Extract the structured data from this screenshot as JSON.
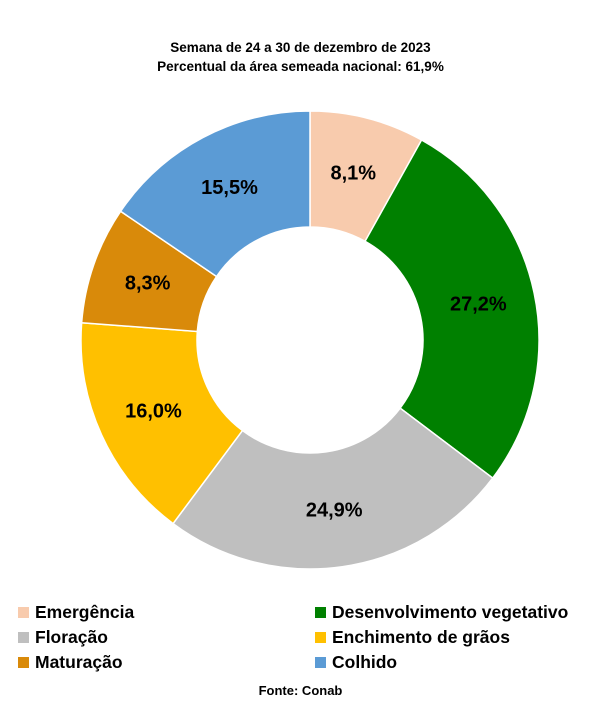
{
  "chart_data": {
    "type": "pie",
    "donut": true,
    "title": "Semana de 24 a 30 de dezembro de 2023",
    "subtitle": "Percentual da área semeada nacional: 61,9%",
    "categories": [
      "Emergência",
      "Desenvolvimento vegetativo",
      "Floração",
      "Enchimento de grãos",
      "Maturação",
      "Colhido"
    ],
    "values": [
      8.1,
      27.2,
      24.9,
      16.0,
      8.3,
      15.5
    ],
    "value_labels": [
      "8,1%",
      "27,2%",
      "24,9%",
      "16,0%",
      "8,3%",
      "15,5%"
    ],
    "colors": [
      "#f8cbad",
      "#008000",
      "#bfbfbf",
      "#ffc000",
      "#d98a0a",
      "#5b9bd5"
    ],
    "legend_position": "bottom",
    "source": "Fonte: Conab"
  }
}
